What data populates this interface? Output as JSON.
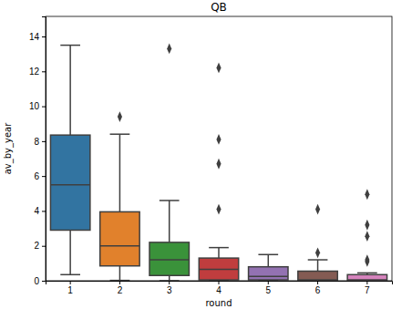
{
  "chart_data": {
    "type": "box",
    "title": "QB",
    "x_label": "round",
    "y_label": "av_by_year",
    "categories": [
      "1",
      "2",
      "3",
      "4",
      "5",
      "6",
      "7"
    ],
    "whisker_low": [
      0.35,
      0.02,
      0.0,
      0.0,
      0.0,
      0.0,
      0.0
    ],
    "q1": [
      2.9,
      0.85,
      0.3,
      0.05,
      0.05,
      0.0,
      0.0
    ],
    "median": [
      5.5,
      2.0,
      1.2,
      0.65,
      0.25,
      0.05,
      0.05
    ],
    "q3": [
      8.35,
      3.95,
      2.2,
      1.3,
      0.8,
      0.55,
      0.35
    ],
    "whisker_high": [
      13.5,
      8.4,
      4.6,
      1.9,
      1.5,
      1.2,
      0.45
    ],
    "outliers": [
      [],
      [
        9.4
      ],
      [
        13.3
      ],
      [
        4.1,
        6.7,
        8.1,
        12.2
      ],
      [],
      [
        1.6,
        4.1
      ],
      [
        1.1,
        1.2,
        2.55,
        3.2,
        4.95
      ]
    ],
    "colors": [
      "#3274a1",
      "#e1812c",
      "#3a923a",
      "#c03d3e",
      "#9372b2",
      "#845b53",
      "#d684bd"
    ],
    "ylim": [
      0,
      15.15
    ],
    "yticks": [
      0,
      2,
      4,
      6,
      8,
      10,
      12,
      14
    ]
  }
}
